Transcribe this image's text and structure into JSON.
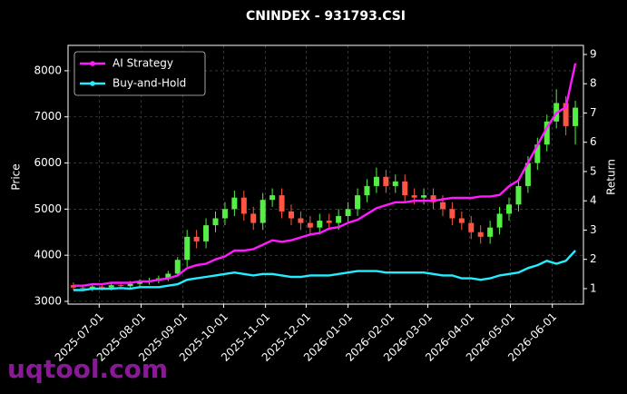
{
  "chart_data": {
    "type": "candlestick",
    "title": "CNINDEX - 931793.CSI",
    "ylabel": "Price",
    "y2label": "Return",
    "watermark": "uqtool.com",
    "x": [
      "2025-06-12",
      "2025-06-19",
      "2025-06-26",
      "2025-07-03",
      "2025-07-10",
      "2025-07-17",
      "2025-07-24",
      "2025-07-31",
      "2025-08-07",
      "2025-08-14",
      "2025-08-21",
      "2025-08-28",
      "2025-09-04",
      "2025-09-11",
      "2025-09-18",
      "2025-09-25",
      "2025-10-02",
      "2025-10-09",
      "2025-10-16",
      "2025-10-23",
      "2025-10-30",
      "2025-11-06",
      "2025-11-13",
      "2025-11-20",
      "2025-11-27",
      "2025-12-04",
      "2025-12-11",
      "2025-12-18",
      "2025-12-25",
      "2026-01-01",
      "2026-01-08",
      "2026-01-15",
      "2026-01-22",
      "2026-01-29",
      "2026-02-05",
      "2026-02-12",
      "2026-02-19",
      "2026-02-26",
      "2026-03-05",
      "2026-03-12",
      "2026-03-19",
      "2026-03-26",
      "2026-04-02",
      "2026-04-09",
      "2026-04-16",
      "2026-04-23",
      "2026-04-30",
      "2026-05-07",
      "2026-05-14",
      "2026-05-21",
      "2026-05-28",
      "2026-06-04",
      "2026-06-11",
      "2026-06-18"
    ],
    "open": [
      3350,
      3300,
      3280,
      3320,
      3300,
      3350,
      3330,
      3380,
      3420,
      3450,
      3500,
      3600,
      3900,
      4400,
      4300,
      4650,
      4800,
      5000,
      5250,
      4900,
      4700,
      5200,
      5300,
      4950,
      4800,
      4700,
      4600,
      4750,
      4700,
      4850,
      5000,
      5300,
      5500,
      5700,
      5500,
      5600,
      5300,
      5250,
      5300,
      5150,
      5000,
      4800,
      4700,
      4500,
      4400,
      4600,
      4900,
      5100,
      5500,
      6000,
      6400,
      6900,
      7300,
      6800
    ],
    "high": [
      3410,
      3360,
      3380,
      3380,
      3410,
      3410,
      3440,
      3480,
      3510,
      3560,
      3660,
      3960,
      4550,
      4550,
      4800,
      4950,
      5150,
      5400,
      5400,
      5050,
      5350,
      5450,
      5450,
      5100,
      4950,
      4850,
      4900,
      4900,
      5000,
      5150,
      5450,
      5650,
      5900,
      5850,
      5750,
      5750,
      5450,
      5450,
      5450,
      5300,
      5150,
      4950,
      4850,
      4650,
      4750,
      5050,
      5250,
      5650,
      6150,
      6550,
      7050,
      7600,
      7450,
      7350
    ],
    "low": [
      3240,
      3220,
      3220,
      3240,
      3240,
      3270,
      3270,
      3320,
      3360,
      3390,
      3440,
      3540,
      3750,
      4150,
      4150,
      4500,
      4650,
      4850,
      4750,
      4550,
      4550,
      5050,
      4800,
      4650,
      4550,
      4450,
      4450,
      4550,
      4550,
      4700,
      4850,
      5150,
      5350,
      5350,
      5350,
      5150,
      5100,
      5100,
      5000,
      4850,
      4650,
      4550,
      4350,
      4250,
      4250,
      4450,
      4750,
      4950,
      5350,
      5850,
      6250,
      6750,
      6600,
      6400
    ],
    "close": [
      3300,
      3280,
      3320,
      3300,
      3350,
      3330,
      3380,
      3420,
      3450,
      3500,
      3600,
      3900,
      4400,
      4300,
      4650,
      4800,
      5000,
      5250,
      4900,
      4700,
      5200,
      5300,
      4950,
      4800,
      4700,
      4600,
      4750,
      4700,
      4850,
      5000,
      5300,
      5500,
      5700,
      5500,
      5600,
      5300,
      5250,
      5300,
      5150,
      5000,
      4800,
      4700,
      4500,
      4400,
      4600,
      4900,
      5100,
      5500,
      6000,
      6400,
      6900,
      7300,
      6800,
      7200
    ],
    "up_color": "#55ee44",
    "down_color": "#ff5544",
    "series": [
      {
        "name": "AI Strategy",
        "color": "#ff1aff",
        "axis": "y2",
        "values": [
          1.1,
          1.1,
          1.15,
          1.15,
          1.2,
          1.2,
          1.2,
          1.25,
          1.25,
          1.3,
          1.35,
          1.45,
          1.7,
          1.8,
          1.85,
          2.0,
          2.1,
          2.3,
          2.3,
          2.35,
          2.5,
          2.65,
          2.6,
          2.65,
          2.75,
          2.85,
          2.9,
          3.05,
          3.1,
          3.25,
          3.35,
          3.55,
          3.75,
          3.85,
          3.95,
          3.95,
          4.0,
          4.0,
          4.0,
          4.05,
          4.1,
          4.1,
          4.1,
          4.15,
          4.15,
          4.2,
          4.5,
          4.7,
          5.3,
          5.9,
          6.5,
          7.0,
          7.2,
          8.7
        ]
      },
      {
        "name": "Buy-and-Hold",
        "color": "#22eeff",
        "axis": "y2",
        "values": [
          0.95,
          0.95,
          1.0,
          1.0,
          1.0,
          1.02,
          1.0,
          1.05,
          1.05,
          1.05,
          1.1,
          1.15,
          1.3,
          1.35,
          1.4,
          1.45,
          1.5,
          1.55,
          1.5,
          1.45,
          1.5,
          1.5,
          1.45,
          1.4,
          1.4,
          1.45,
          1.45,
          1.45,
          1.5,
          1.55,
          1.6,
          1.6,
          1.6,
          1.55,
          1.55,
          1.55,
          1.55,
          1.55,
          1.5,
          1.45,
          1.45,
          1.35,
          1.35,
          1.3,
          1.35,
          1.45,
          1.5,
          1.55,
          1.7,
          1.8,
          1.95,
          1.85,
          1.95,
          2.3
        ]
      }
    ],
    "xlim": [
      "2025-06-08",
      "2026-06-24"
    ],
    "xticks": [
      "2025-07-01",
      "2025-08-01",
      "2025-09-01",
      "2025-10-01",
      "2025-11-01",
      "2025-12-01",
      "2026-01-01",
      "2026-02-01",
      "2026-03-01",
      "2026-04-01",
      "2026-05-01",
      "2026-06-01"
    ],
    "ylim": [
      2940,
      8550
    ],
    "yticks": [
      3000,
      4000,
      5000,
      6000,
      7000,
      8000
    ],
    "y2lim": [
      0.47,
      9.31
    ],
    "y2ticks": [
      1,
      2,
      3,
      4,
      5,
      6,
      7,
      8,
      9
    ],
    "grid": true,
    "legend": "upper left"
  }
}
